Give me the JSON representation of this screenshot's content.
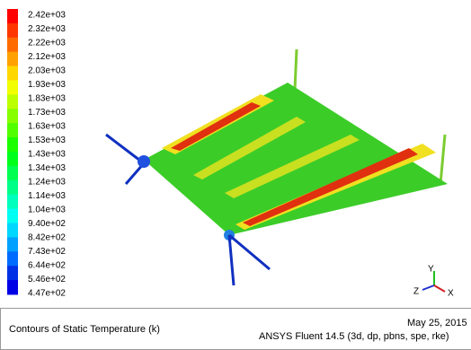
{
  "legend": {
    "labels": [
      "2.42e+03",
      "2.32e+03",
      "2.22e+03",
      "2.12e+03",
      "2.03e+03",
      "1.93e+03",
      "1.83e+03",
      "1.73e+03",
      "1.63e+03",
      "1.53e+03",
      "1.43e+03",
      "1.34e+03",
      "1.24e+03",
      "1.14e+03",
      "1.04e+03",
      "9.40e+02",
      "8.42e+02",
      "7.43e+02",
      "6.44e+02",
      "5.46e+02",
      "4.47e+02"
    ]
  },
  "triad": {
    "y": "Y",
    "z": "Z",
    "x": "X"
  },
  "footer": {
    "title": "Contours of Static Temperature (k)",
    "date": "May 25, 2015",
    "software": "ANSYS Fluent 14.5 (3d, dp, pbns, spe, rke)"
  }
}
